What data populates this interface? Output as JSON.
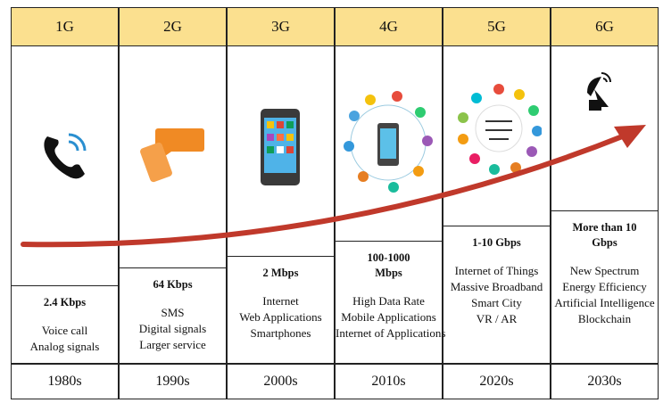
{
  "columns": [
    {
      "generation": "1G",
      "speed": "2.4 Kbps",
      "features": [
        "Voice call",
        "Analog signals"
      ],
      "era": "1980s"
    },
    {
      "generation": "2G",
      "speed": "64 Kbps",
      "features": [
        "SMS",
        "Digital signals",
        "Larger service"
      ],
      "era": "1990s"
    },
    {
      "generation": "3G",
      "speed": "2 Mbps",
      "features": [
        "Internet",
        "Web Applications",
        "Smartphones"
      ],
      "era": "2000s"
    },
    {
      "generation": "4G",
      "speed": "100-1000 Mbps",
      "features": [
        "High Data Rate",
        "Mobile Applications",
        "Internet of Applications"
      ],
      "era": "2010s"
    },
    {
      "generation": "5G",
      "speed": "1-10 Gbps",
      "features": [
        "Internet of Things",
        "Massive Broadband",
        "Smart City",
        "VR / AR"
      ],
      "era": "2020s"
    },
    {
      "generation": "6G",
      "speed": "More than 10 Gbps",
      "features": [
        "New Spectrum",
        "Energy Efficiency",
        "Artificial Intelligence",
        "Blockchain"
      ],
      "era": "2030s"
    }
  ]
}
